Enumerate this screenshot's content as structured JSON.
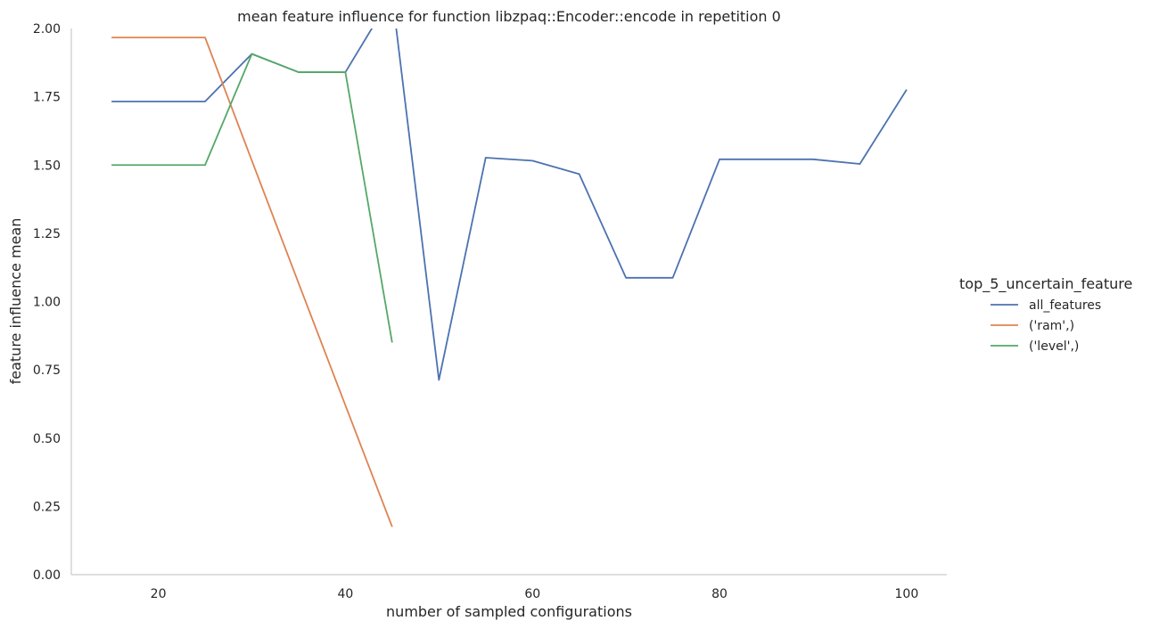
{
  "chart_data": {
    "type": "line",
    "title": "mean feature influence for function libzpaq::Encoder::encode in repetition 0",
    "xlabel": "number of sampled configurations",
    "ylabel": "feature influence mean",
    "xlim": [
      10.7,
      104.3
    ],
    "ylim": [
      0,
      2.0
    ],
    "xticks": [
      20,
      40,
      60,
      80,
      100
    ],
    "yticks": [
      0.0,
      0.25,
      0.5,
      0.75,
      1.0,
      1.25,
      1.5,
      1.75,
      2.0
    ],
    "grid": false,
    "legend": {
      "title": "top_5_uncertain_feature",
      "placement": "right"
    },
    "series": [
      {
        "name": "all_features",
        "color": "#4c72b0",
        "x": [
          15,
          20,
          25,
          30,
          35,
          40,
          45,
          50,
          55,
          60,
          65,
          70,
          75,
          80,
          85,
          90,
          95,
          100
        ],
        "y": [
          1.733,
          1.733,
          1.733,
          1.907,
          1.84,
          1.84,
          2.123,
          0.713,
          1.527,
          1.516,
          1.467,
          1.087,
          1.087,
          1.521,
          1.521,
          1.521,
          1.504,
          1.776
        ]
      },
      {
        "name": "('ram',)",
        "color": "#dd8452",
        "x": [
          15,
          20,
          25,
          30,
          35,
          40,
          45
        ],
        "y": [
          1.967,
          1.967,
          1.967,
          1.516,
          1.067,
          0.62,
          0.175
        ]
      },
      {
        "name": "('level',)",
        "color": "#55a868",
        "x": [
          15,
          20,
          25,
          30,
          35,
          40,
          45
        ],
        "y": [
          1.5,
          1.5,
          1.5,
          1.907,
          1.84,
          1.84,
          0.85
        ]
      }
    ]
  }
}
